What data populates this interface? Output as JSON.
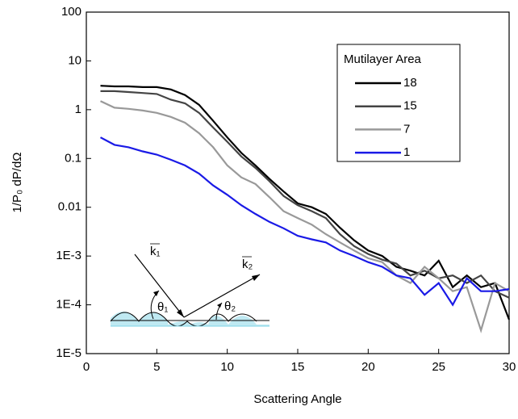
{
  "chart_data": {
    "type": "line",
    "xlabel": "Scattering Angle",
    "ylabel": "1/P₀ dP/dΩ",
    "log_y": true,
    "xlim": [
      0,
      30
    ],
    "xticks": [
      0,
      5,
      10,
      15,
      20,
      25,
      30
    ],
    "ylim": [
      1e-05,
      100
    ],
    "yticks": [
      {
        "value": 1e-05,
        "label": "1E-5"
      },
      {
        "value": 0.0001,
        "label": "1E-4"
      },
      {
        "value": 0.001,
        "label": "1E-3"
      },
      0.01,
      0.1,
      1,
      10,
      100
    ],
    "legend_title": "Mutilayer Area",
    "legend_position": "upper right",
    "x": [
      1,
      2,
      3,
      4,
      5,
      6,
      7,
      8,
      9,
      10,
      11,
      12,
      13,
      14,
      15,
      16,
      17,
      18,
      19,
      20,
      21,
      22,
      23,
      24,
      25,
      26,
      27,
      28,
      29,
      30
    ],
    "series": [
      {
        "name": "18",
        "color": "#000000",
        "values": [
          3.1,
          3.0,
          3.0,
          2.9,
          2.9,
          2.6,
          2.0,
          1.26,
          0.59,
          0.27,
          0.13,
          0.072,
          0.038,
          0.021,
          0.012,
          0.01,
          0.0073,
          0.0038,
          0.0021,
          0.0013,
          0.001,
          0.0006,
          0.0005,
          0.0004,
          0.0008,
          0.00023,
          0.0004,
          0.00023,
          0.00028,
          5e-05
        ]
      },
      {
        "name": "15",
        "color": "#444444",
        "values": [
          2.4,
          2.4,
          2.3,
          2.2,
          2.1,
          1.6,
          1.35,
          0.86,
          0.43,
          0.22,
          0.11,
          0.064,
          0.034,
          0.017,
          0.011,
          0.0083,
          0.006,
          0.0028,
          0.0016,
          0.0011,
          0.00084,
          0.0007,
          0.0004,
          0.0005,
          0.00035,
          0.0004,
          0.00028,
          0.0004,
          0.00019,
          0.00014
        ]
      },
      {
        "name": "7",
        "color": "#999999",
        "values": [
          1.5,
          1.1,
          1.04,
          0.96,
          0.86,
          0.71,
          0.54,
          0.33,
          0.17,
          0.072,
          0.041,
          0.03,
          0.016,
          0.0083,
          0.006,
          0.0044,
          0.0028,
          0.0019,
          0.0013,
          0.0009,
          0.00075,
          0.0004,
          0.00028,
          0.0006,
          0.00035,
          0.00019,
          0.00023,
          3e-05,
          0.00028,
          0.00019
        ]
      },
      {
        "name": "1",
        "color": "#1a1ae6",
        "values": [
          0.27,
          0.19,
          0.17,
          0.14,
          0.12,
          0.094,
          0.072,
          0.049,
          0.028,
          0.018,
          0.011,
          0.0073,
          0.005,
          0.0037,
          0.0026,
          0.0022,
          0.0019,
          0.0013,
          0.001,
          0.00075,
          0.0006,
          0.0004,
          0.00035,
          0.00016,
          0.00028,
          0.0001,
          0.00035,
          0.00019,
          0.00019,
          0.00021
        ]
      }
    ],
    "annotations": [
      "k₁",
      "k₂",
      "θ₁",
      "θ₂"
    ]
  }
}
